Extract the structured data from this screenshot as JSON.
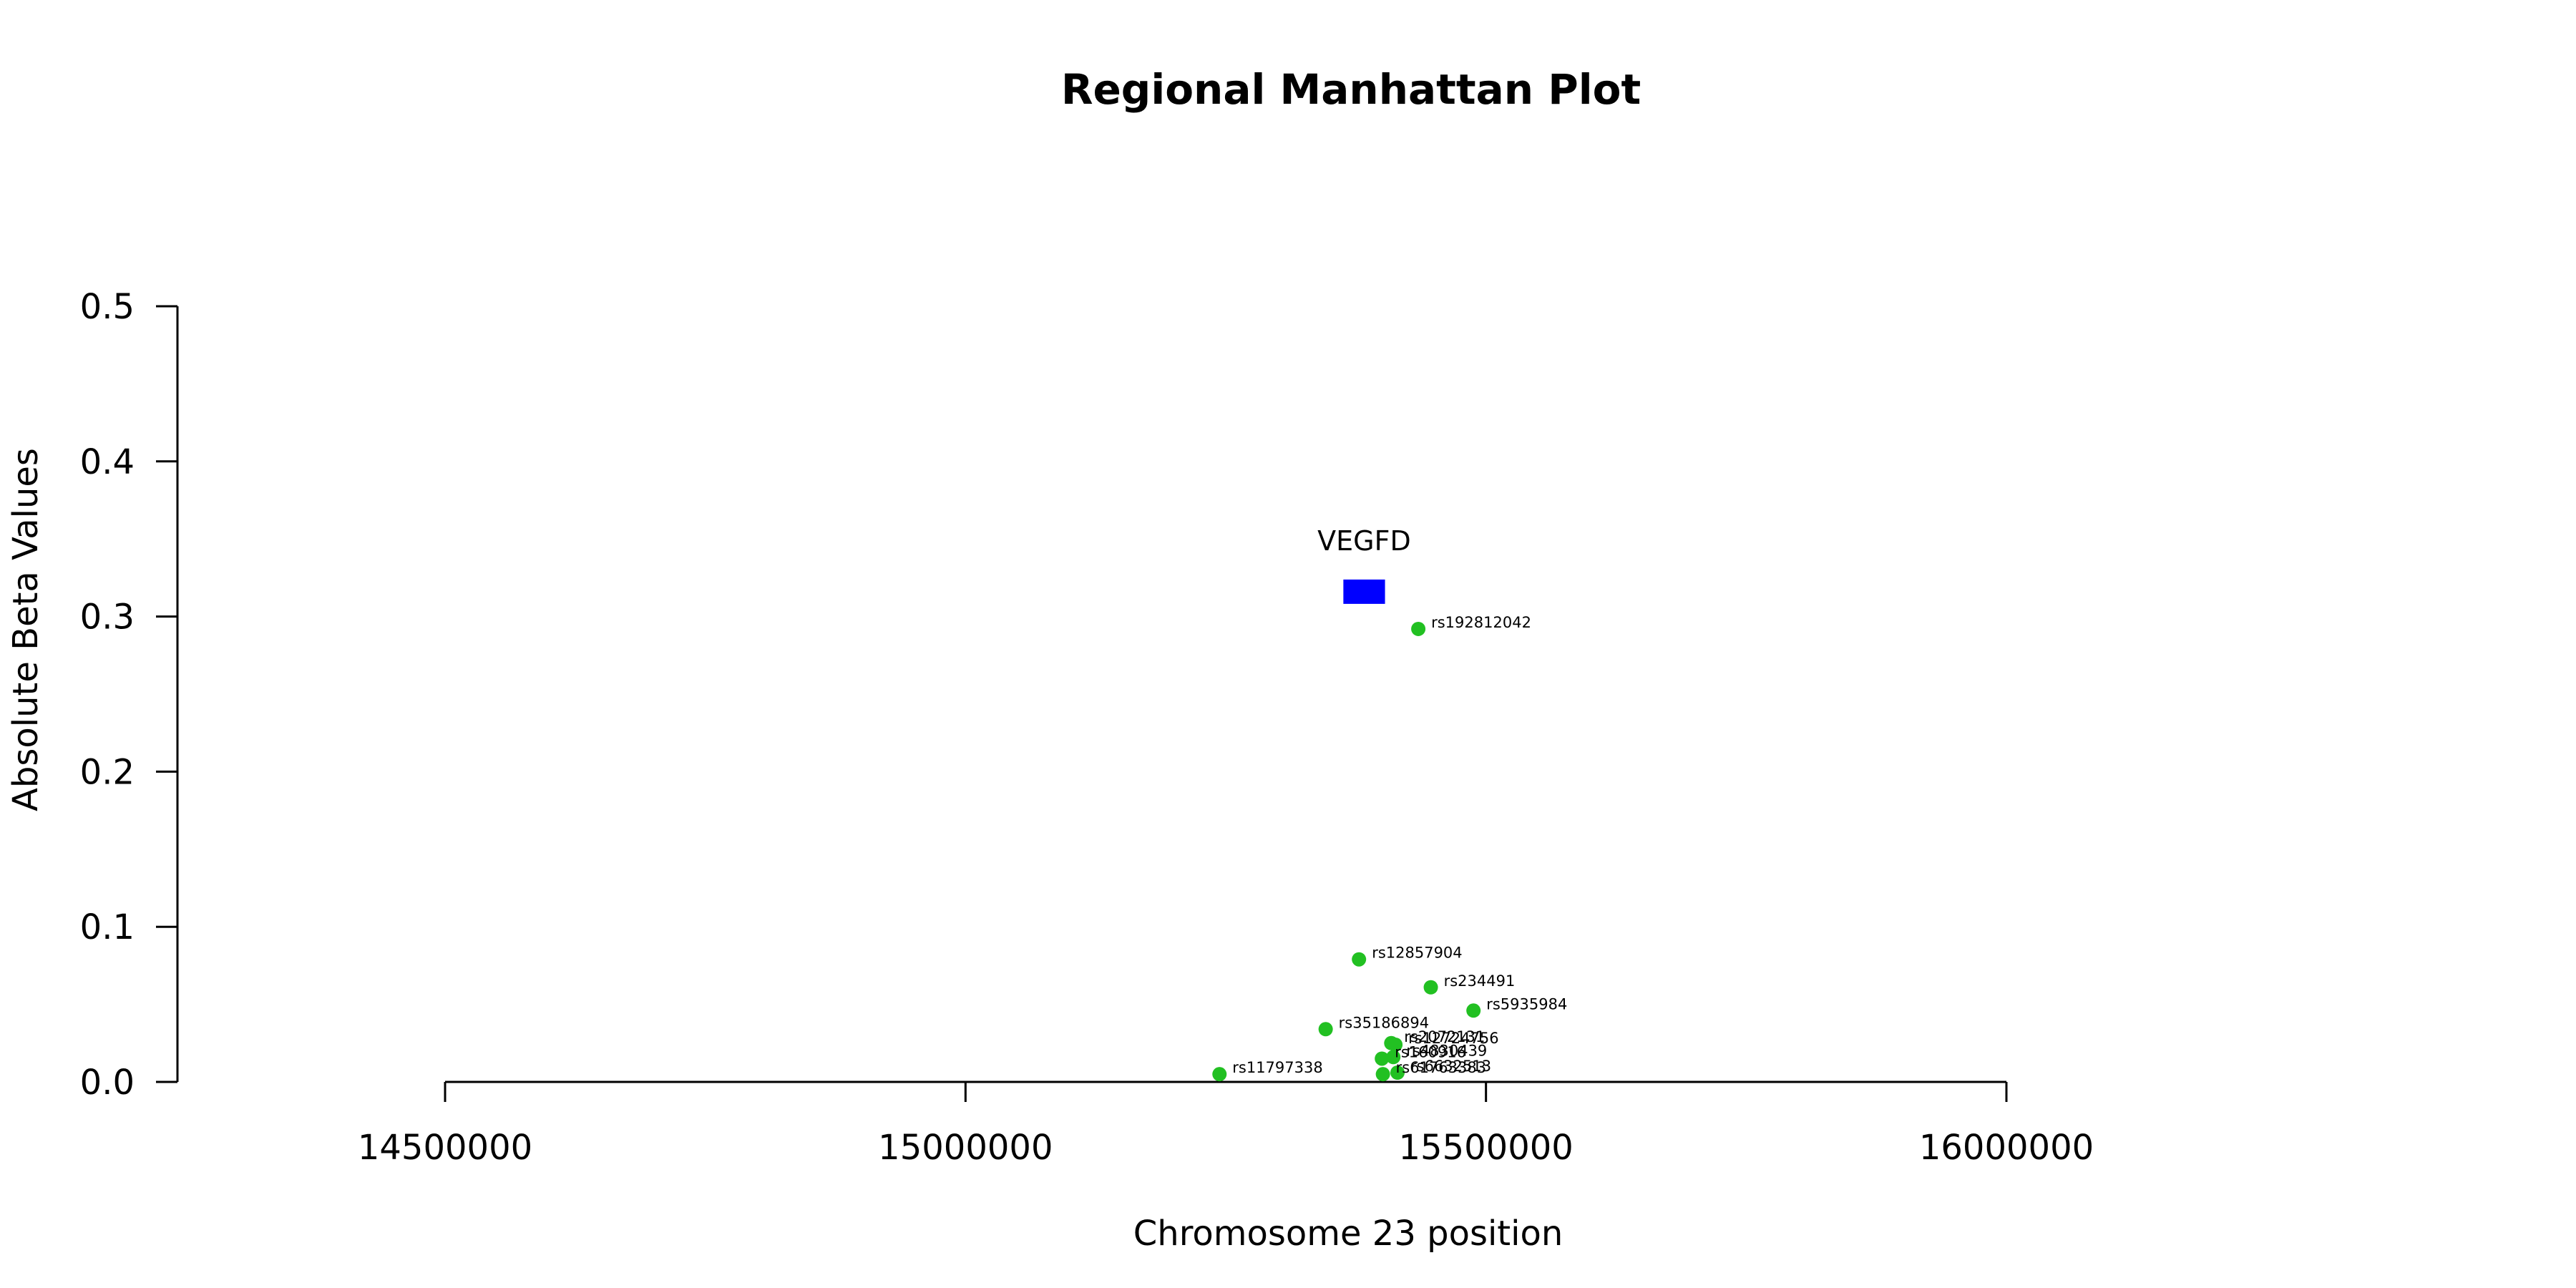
{
  "chart_data": {
    "type": "scatter",
    "title": "Regional Manhattan Plot",
    "xlabel": "Chromosome 23 position",
    "ylabel": "Absolute Beta Values",
    "xlim": [
      14500000,
      16000000
    ],
    "ylim": [
      0,
      0.5
    ],
    "x_ticks": [
      14500000,
      15000000,
      15500000,
      16000000
    ],
    "x_tick_labels": [
      "14500000",
      "15000000",
      "15500000",
      "16000000"
    ],
    "y_ticks": [
      0,
      0.1,
      0.2,
      0.3,
      0.4,
      0.5
    ],
    "y_tick_labels": [
      "0.0",
      "0.1",
      "0.2",
      "0.3",
      "0.4",
      "0.5"
    ],
    "grid": false,
    "point_color": "#22c022",
    "gene": {
      "name": "VEGFD",
      "start": 15363000,
      "end": 15403000,
      "y": 0.316,
      "color": "#0000ff"
    },
    "points": [
      {
        "label": "rs192812042",
        "x": 15435000,
        "y": 0.292
      },
      {
        "label": "rs12857904",
        "x": 15378000,
        "y": 0.079
      },
      {
        "label": "rs234491",
        "x": 15447000,
        "y": 0.061
      },
      {
        "label": "rs5935984",
        "x": 15488000,
        "y": 0.046
      },
      {
        "label": "rs35186894",
        "x": 15346000,
        "y": 0.034
      },
      {
        "label": "rs2072131",
        "x": 15409000,
        "y": 0.025
      },
      {
        "label": "rs12724756",
        "x": 15413000,
        "y": 0.024
      },
      {
        "label": "rs4830439",
        "x": 15411000,
        "y": 0.016
      },
      {
        "label": "rs160916",
        "x": 15400000,
        "y": 0.015
      },
      {
        "label": "rs6632513",
        "x": 15415000,
        "y": 0.006
      },
      {
        "label": "rs61763383",
        "x": 15401000,
        "y": 0.005
      },
      {
        "label": "rs11797338",
        "x": 15244000,
        "y": 0.005
      }
    ]
  }
}
